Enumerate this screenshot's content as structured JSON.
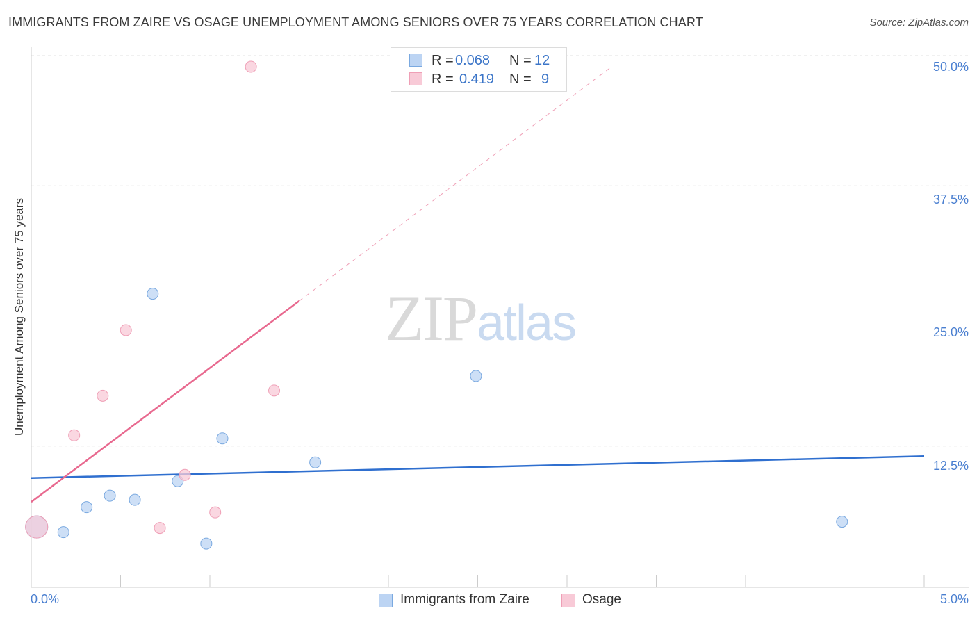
{
  "title": "IMMIGRANTS FROM ZAIRE VS OSAGE UNEMPLOYMENT AMONG SENIORS OVER 75 YEARS CORRELATION CHART",
  "source": "Source: ZipAtlas.com",
  "watermark": {
    "zip": "ZIP",
    "atlas": "atlas"
  },
  "legend_top": {
    "rows": [
      {
        "r_label": "R =",
        "r_value": "0.068",
        "n_label": "N =",
        "n_value": "12"
      },
      {
        "r_label": "R =",
        "r_value": "0.419",
        "n_label": "N =",
        "n_value": "9"
      }
    ]
  },
  "chart_data": {
    "type": "scatter",
    "title": "IMMIGRANTS FROM ZAIRE VS OSAGE UNEMPLOYMENT AMONG SENIORS OVER 75 YEARS CORRELATION CHART",
    "xlabel": "",
    "ylabel": "Unemployment Among Seniors over 75 years",
    "xlim": [
      0,
      5
    ],
    "ylim": [
      0,
      50
    ],
    "x_tick_labels": [
      "0.0%",
      "5.0%"
    ],
    "y_ticks": [
      12.5,
      25.0,
      37.5,
      50.0
    ],
    "y_tick_labels": [
      "12.5%",
      "25.0%",
      "37.5%",
      "50.0%"
    ],
    "grid": true,
    "legend_position": "bottom-center",
    "series": [
      {
        "name": "Immigrants from Zaire",
        "color": "#7aa9e0",
        "fill": "#bcd4f3",
        "line_color": "#2f6fcf",
        "r": 0.068,
        "n": 12,
        "x": [
          0.03,
          0.18,
          0.31,
          0.44,
          0.58,
          0.68,
          0.82,
          0.98,
          1.07,
          1.59,
          2.49,
          4.54
        ],
        "y": [
          5.8,
          5.3,
          7.7,
          8.8,
          8.4,
          28.2,
          10.2,
          4.2,
          14.3,
          12.0,
          20.3,
          6.3
        ],
        "trend": {
          "x0": 0.0,
          "y0": 10.5,
          "x1": 5.0,
          "y1": 12.6
        }
      },
      {
        "name": "Osage",
        "color": "#ef9fb6",
        "fill": "#f8cad7",
        "line_color": "#e8698f",
        "r": 0.419,
        "n": 9,
        "x": [
          0.03,
          0.24,
          0.4,
          0.53,
          0.72,
          0.86,
          1.03,
          1.23,
          1.36
        ],
        "y": [
          5.8,
          14.6,
          18.4,
          24.7,
          5.7,
          10.8,
          7.2,
          50.0,
          18.9
        ],
        "trend": {
          "x0": 0.0,
          "y0": 8.2,
          "x1": 1.5,
          "y1": 27.5,
          "dash_to_x": 3.25,
          "dash_to_y": 50.0
        }
      }
    ]
  }
}
